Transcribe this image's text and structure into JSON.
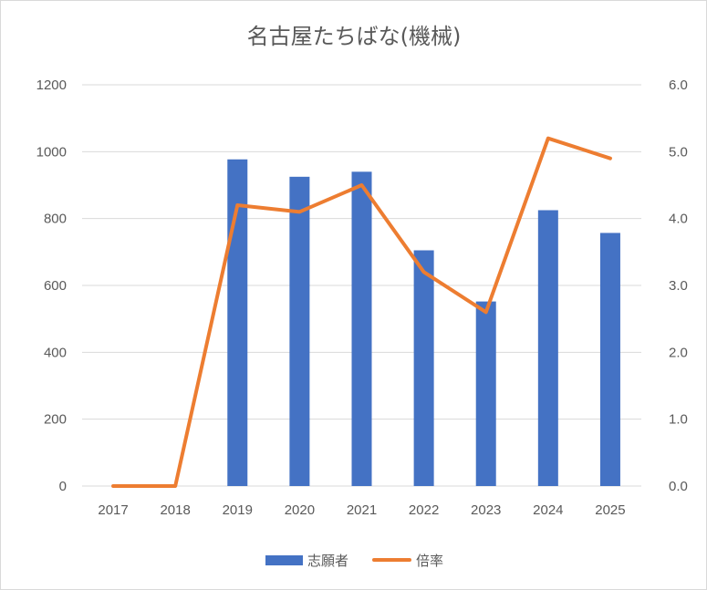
{
  "chart_data": {
    "type": "bar",
    "title": "名古屋たちばな(機械)",
    "categories": [
      "2017",
      "2018",
      "2019",
      "2020",
      "2021",
      "2022",
      "2023",
      "2024",
      "2025"
    ],
    "series": [
      {
        "name": "志願者",
        "type": "bar",
        "axis": "left",
        "color": "#4472c4",
        "values": [
          0,
          0,
          977,
          925,
          940,
          705,
          552,
          825,
          757
        ]
      },
      {
        "name": "倍率",
        "type": "line",
        "axis": "right",
        "color": "#ed7d31",
        "values": [
          0.0,
          0.0,
          4.2,
          4.1,
          4.5,
          3.2,
          2.6,
          5.2,
          4.9
        ]
      }
    ],
    "y_left": {
      "min": 0,
      "max": 1200,
      "ticks": [
        "0",
        "200",
        "400",
        "600",
        "800",
        "1000",
        "1200"
      ]
    },
    "y_right": {
      "min": 0,
      "max": 6,
      "ticks": [
        "0.0",
        "1.0",
        "2.0",
        "3.0",
        "4.0",
        "5.0",
        "6.0"
      ]
    },
    "grid": true,
    "legend": "bottom"
  }
}
